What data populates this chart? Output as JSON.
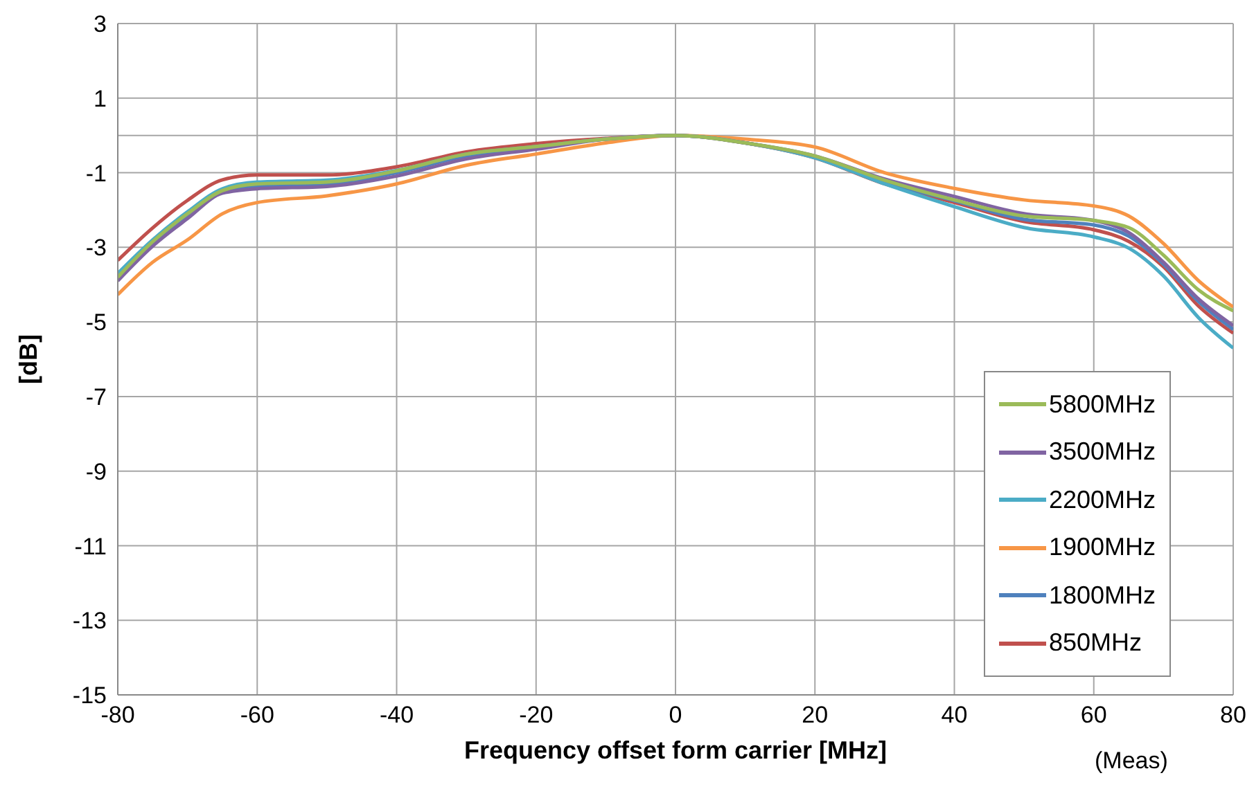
{
  "chart_data": {
    "type": "line",
    "xlabel": "Frequency offset form carrier [MHz]",
    "ylabel": "[dB]",
    "annotations": [
      "(Meas)"
    ],
    "x": [
      -80,
      -75,
      -70,
      -65,
      -60,
      -50,
      -40,
      -30,
      -20,
      -10,
      0,
      10,
      20,
      30,
      40,
      50,
      60,
      65,
      70,
      75,
      80
    ],
    "xlim": [
      -80,
      80
    ],
    "xticks": [
      -80,
      -60,
      -40,
      -20,
      0,
      20,
      40,
      60,
      80
    ],
    "ylim": [
      -15,
      3
    ],
    "yticks": [
      -15,
      -13,
      -11,
      -9,
      -7,
      -5,
      -3,
      -1,
      {
        "value": 0,
        "label": null
      },
      1,
      3
    ],
    "grid": true,
    "legend": "bottom right",
    "line_style": "solid",
    "marker": "none",
    "series": [
      {
        "name": "5800MHz",
        "color": "#9bbb59",
        "values": [
          -3.8,
          -2.85,
          -2.1,
          -1.48,
          -1.3,
          -1.25,
          -0.95,
          -0.5,
          -0.3,
          -0.1,
          0,
          -0.2,
          -0.55,
          -1.2,
          -1.73,
          -2.16,
          -2.28,
          -2.47,
          -3.21,
          -4.14,
          -4.7
        ]
      },
      {
        "name": "3500MHz",
        "color": "#8064a2",
        "values": [
          -3.9,
          -2.97,
          -2.23,
          -1.55,
          -1.43,
          -1.37,
          -1.09,
          -0.63,
          -0.37,
          -0.1,
          0,
          -0.2,
          -0.55,
          -1.17,
          -1.64,
          -2.1,
          -2.28,
          -2.6,
          -3.4,
          -4.38,
          -5.1
        ]
      },
      {
        "name": "2200MHz",
        "color": "#4bacc6",
        "values": [
          -3.7,
          -2.8,
          -2.05,
          -1.43,
          -1.25,
          -1.2,
          -0.94,
          -0.5,
          -0.3,
          -0.1,
          0,
          -0.2,
          -0.6,
          -1.3,
          -1.91,
          -2.47,
          -2.72,
          -3.02,
          -3.77,
          -4.88,
          -5.7
        ]
      },
      {
        "name": "1900MHz",
        "color": "#f79646",
        "values": [
          -4.27,
          -3.4,
          -2.8,
          -2.1,
          -1.8,
          -1.62,
          -1.3,
          -0.8,
          -0.5,
          -0.2,
          0,
          -0.1,
          -0.31,
          -1.0,
          -1.42,
          -1.73,
          -1.89,
          -2.16,
          -2.9,
          -3.89,
          -4.6
        ]
      },
      {
        "name": "1800MHz",
        "color": "#4f81bd",
        "values": [
          -3.85,
          -2.9,
          -2.15,
          -1.5,
          -1.35,
          -1.3,
          -1.0,
          -0.55,
          -0.32,
          -0.1,
          0,
          -0.2,
          -0.58,
          -1.25,
          -1.75,
          -2.25,
          -2.4,
          -2.7,
          -3.45,
          -4.45,
          -5.2
        ]
      },
      {
        "name": "850MHz",
        "color": "#c0504d",
        "values": [
          -3.35,
          -2.48,
          -1.74,
          -1.19,
          -1.06,
          -1.06,
          -0.84,
          -0.44,
          -0.22,
          -0.08,
          0,
          -0.2,
          -0.6,
          -1.3,
          -1.8,
          -2.31,
          -2.53,
          -2.84,
          -3.52,
          -4.57,
          -5.3
        ]
      }
    ]
  }
}
